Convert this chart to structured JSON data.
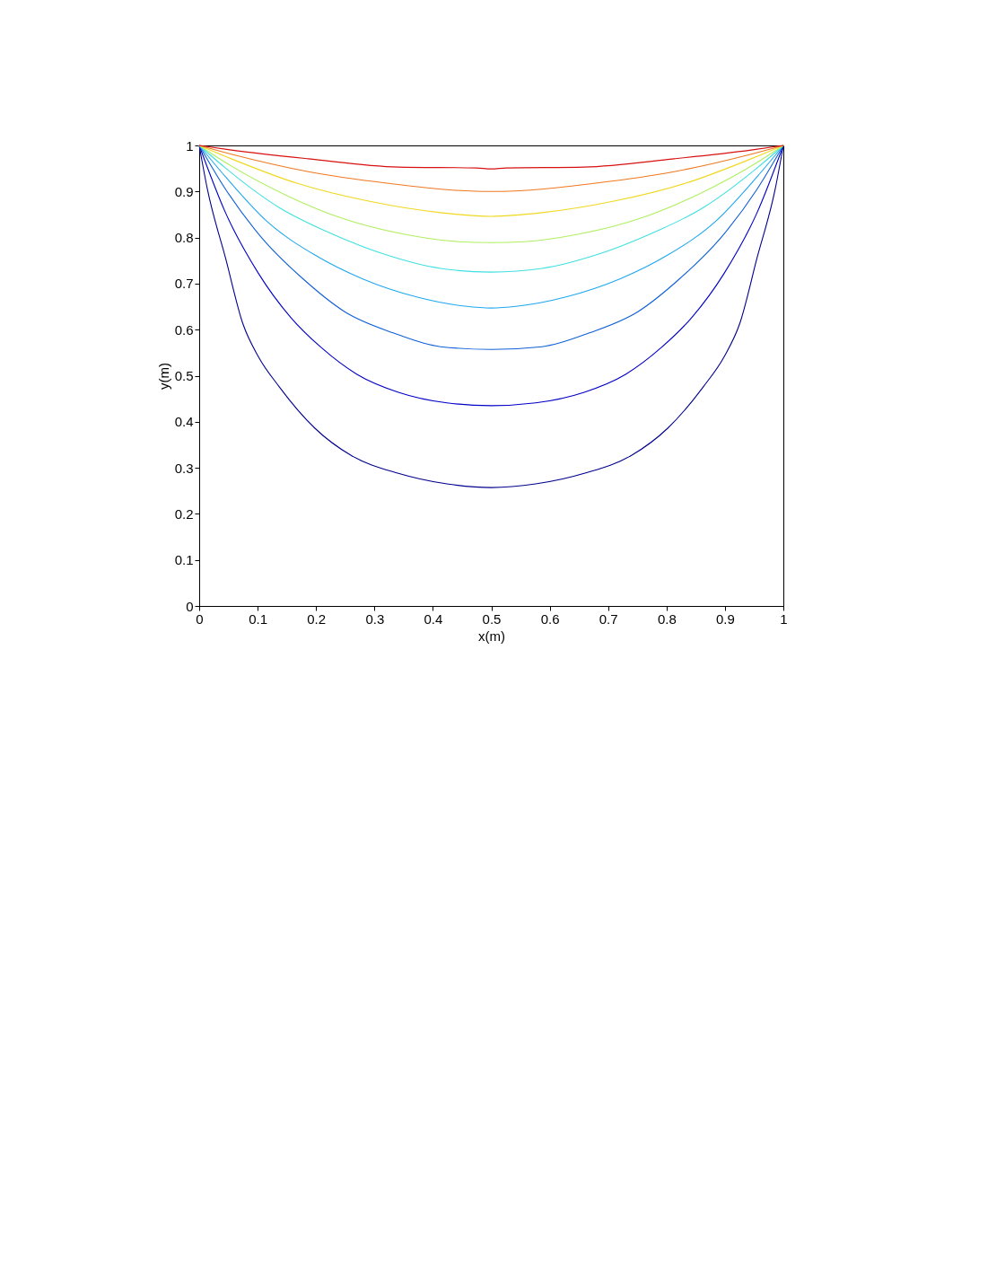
{
  "chart_data": {
    "type": "line",
    "xlabel": "x(m)",
    "ylabel": "y(m)",
    "xlim": [
      0,
      1
    ],
    "ylim": [
      0,
      1
    ],
    "xticks": [
      0,
      0.1,
      0.2,
      0.3,
      0.4,
      0.5,
      0.6,
      0.7,
      0.8,
      0.9,
      1
    ],
    "yticks": [
      0,
      0.1,
      0.2,
      0.3,
      0.4,
      0.5,
      0.6,
      0.7,
      0.8,
      0.9,
      1
    ],
    "grid": false,
    "legend": false,
    "marker": "none",
    "line_style": "solid",
    "series": [
      {
        "color": "#00008f",
        "x": [
          0,
          0.014,
          0.045,
          0.075,
          0.101,
          0.137,
          0.198,
          0.26,
          0.341,
          0.424,
          0.5,
          0.576,
          0.659,
          0.74,
          0.802,
          0.863,
          0.899,
          0.925,
          0.955,
          0.986,
          1
        ],
        "values": [
          1,
          0.905,
          0.756,
          0.612,
          0.542,
          0.476,
          0.386,
          0.327,
          0.288,
          0.265,
          0.257,
          0.265,
          0.288,
          0.327,
          0.386,
          0.476,
          0.542,
          0.612,
          0.756,
          0.905,
          1
        ]
      },
      {
        "color": "#0000c8",
        "x": [
          0,
          0.045,
          0.101,
          0.157,
          0.209,
          0.27,
          0.341,
          0.424,
          0.5,
          0.576,
          0.659,
          0.73,
          0.791,
          0.843,
          0.899,
          0.955,
          1
        ],
        "values": [
          1,
          0.854,
          0.723,
          0.626,
          0.561,
          0.503,
          0.464,
          0.441,
          0.435,
          0.441,
          0.464,
          0.503,
          0.561,
          0.626,
          0.723,
          0.854,
          1
        ]
      },
      {
        "color": "#1060d8",
        "x": [
          0,
          0.045,
          0.106,
          0.178,
          0.249,
          0.332,
          0.413,
          0.5,
          0.587,
          0.668,
          0.751,
          0.822,
          0.894,
          0.955,
          1
        ],
        "values": [
          1,
          0.905,
          0.801,
          0.71,
          0.639,
          0.593,
          0.563,
          0.557,
          0.563,
          0.593,
          0.639,
          0.71,
          0.801,
          0.905,
          1
        ]
      },
      {
        "color": "#20a8f0",
        "x": [
          0,
          0.045,
          0.117,
          0.198,
          0.28,
          0.372,
          0.455,
          0.5,
          0.545,
          0.628,
          0.72,
          0.802,
          0.883,
          0.955,
          1
        ],
        "values": [
          1,
          0.932,
          0.834,
          0.762,
          0.71,
          0.671,
          0.651,
          0.647,
          0.651,
          0.671,
          0.71,
          0.762,
          0.834,
          0.932,
          1
        ]
      },
      {
        "color": "#40e0e0",
        "x": [
          0,
          0.045,
          0.137,
          0.229,
          0.321,
          0.413,
          0.5,
          0.587,
          0.679,
          0.771,
          0.863,
          0.955,
          1
        ],
        "values": [
          1,
          0.951,
          0.865,
          0.807,
          0.762,
          0.733,
          0.725,
          0.733,
          0.762,
          0.807,
          0.865,
          0.951,
          1
        ]
      },
      {
        "color": "#b0f060",
        "x": [
          0,
          0.045,
          0.147,
          0.249,
          0.352,
          0.444,
          0.5,
          0.556,
          0.648,
          0.751,
          0.853,
          0.955,
          1
        ],
        "values": [
          1,
          0.963,
          0.893,
          0.84,
          0.807,
          0.791,
          0.789,
          0.791,
          0.807,
          0.84,
          0.893,
          0.963,
          1
        ]
      },
      {
        "color": "#f0d820",
        "x": [
          0,
          0.055,
          0.167,
          0.29,
          0.413,
          0.5,
          0.587,
          0.71,
          0.833,
          0.945,
          1
        ],
        "values": [
          1,
          0.971,
          0.918,
          0.879,
          0.854,
          0.846,
          0.854,
          0.879,
          0.918,
          0.971,
          1
        ]
      },
      {
        "color": "#f07820",
        "x": [
          0,
          0.055,
          0.187,
          0.321,
          0.433,
          0.5,
          0.567,
          0.679,
          0.813,
          0.945,
          1
        ],
        "values": [
          1,
          0.981,
          0.943,
          0.918,
          0.903,
          0.9,
          0.903,
          0.918,
          0.943,
          0.981,
          1
        ]
      },
      {
        "color": "#d81010",
        "x": [
          0,
          0.055,
          0.187,
          0.341,
          0.475,
          0.5,
          0.525,
          0.659,
          0.813,
          0.945,
          1
        ],
        "values": [
          1,
          0.99,
          0.971,
          0.953,
          0.951,
          0.949,
          0.951,
          0.953,
          0.971,
          0.99,
          1
        ]
      }
    ]
  }
}
